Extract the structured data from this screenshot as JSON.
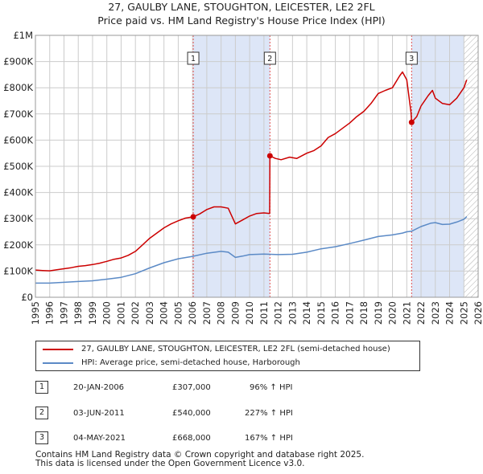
{
  "colors": {
    "price": "#cc0000",
    "hpi": "#5b8ac6",
    "shade": "#dde6f7",
    "grid": "#cccccc",
    "vline": "#e05050"
  },
  "chart_data": {
    "type": "line",
    "title": "27, GAULBY LANE, STOUGHTON, LEICESTER, LE2 2FL",
    "subtitle": "Price paid vs. HM Land Registry's House Price Index (HPI)",
    "xlim": [
      1995,
      2026
    ],
    "ylim": [
      0,
      1000000
    ],
    "y_ticks": [
      {
        "value": 0,
        "label": "£0"
      },
      {
        "value": 100000,
        "label": "£100K"
      },
      {
        "value": 200000,
        "label": "£200K"
      },
      {
        "value": 300000,
        "label": "£300K"
      },
      {
        "value": 400000,
        "label": "£400K"
      },
      {
        "value": 500000,
        "label": "£500K"
      },
      {
        "value": 600000,
        "label": "£600K"
      },
      {
        "value": 700000,
        "label": "£700K"
      },
      {
        "value": 800000,
        "label": "£800K"
      },
      {
        "value": 900000,
        "label": "£900K"
      },
      {
        "value": 1000000,
        "label": "£1M"
      }
    ],
    "x_ticks": [
      "1995",
      "1996",
      "1997",
      "1998",
      "1999",
      "2000",
      "2001",
      "2002",
      "2003",
      "2004",
      "2005",
      "2006",
      "2007",
      "2008",
      "2009",
      "2010",
      "2011",
      "2012",
      "2013",
      "2014",
      "2015",
      "2016",
      "2017",
      "2018",
      "2019",
      "2020",
      "2021",
      "2022",
      "2023",
      "2024",
      "2025",
      "2026"
    ],
    "shaded_periods": [
      [
        2006.05,
        2011.42
      ],
      [
        2021.34,
        2025.0
      ]
    ],
    "hatch_after": 2025.0,
    "series": [
      {
        "name": "27, GAULBY LANE, STOUGHTON, LEICESTER, LE2 2FL (semi-detached house)",
        "key": "price",
        "points": [
          [
            1995.0,
            104000
          ],
          [
            1995.5,
            102000
          ],
          [
            1996.0,
            101000
          ],
          [
            1996.5,
            105000
          ],
          [
            1997.0,
            109000
          ],
          [
            1997.5,
            113000
          ],
          [
            1998.0,
            118000
          ],
          [
            1998.5,
            121000
          ],
          [
            1999.0,
            125000
          ],
          [
            1999.5,
            130000
          ],
          [
            2000.0,
            137000
          ],
          [
            2000.5,
            145000
          ],
          [
            2001.0,
            150000
          ],
          [
            2001.5,
            160000
          ],
          [
            2002.0,
            175000
          ],
          [
            2002.5,
            200000
          ],
          [
            2003.0,
            225000
          ],
          [
            2003.5,
            245000
          ],
          [
            2004.0,
            265000
          ],
          [
            2004.5,
            280000
          ],
          [
            2005.0,
            292000
          ],
          [
            2005.5,
            302000
          ],
          [
            2006.05,
            307000
          ],
          [
            2006.5,
            318000
          ],
          [
            2007.0,
            335000
          ],
          [
            2007.5,
            345000
          ],
          [
            2008.0,
            345000
          ],
          [
            2008.5,
            340000
          ],
          [
            2009.0,
            280000
          ],
          [
            2009.5,
            295000
          ],
          [
            2010.0,
            310000
          ],
          [
            2010.5,
            320000
          ],
          [
            2011.0,
            322000
          ],
          [
            2011.4,
            320000
          ],
          [
            2011.42,
            540000
          ],
          [
            2011.8,
            530000
          ],
          [
            2012.2,
            525000
          ],
          [
            2012.8,
            535000
          ],
          [
            2013.3,
            530000
          ],
          [
            2014.0,
            550000
          ],
          [
            2014.5,
            560000
          ],
          [
            2015.0,
            578000
          ],
          [
            2015.5,
            610000
          ],
          [
            2016.0,
            625000
          ],
          [
            2016.5,
            645000
          ],
          [
            2017.0,
            665000
          ],
          [
            2017.5,
            690000
          ],
          [
            2018.0,
            710000
          ],
          [
            2018.5,
            740000
          ],
          [
            2019.0,
            778000
          ],
          [
            2019.5,
            790000
          ],
          [
            2020.0,
            800000
          ],
          [
            2020.5,
            845000
          ],
          [
            2020.7,
            860000
          ],
          [
            2021.0,
            830000
          ],
          [
            2021.3,
            705000
          ],
          [
            2021.34,
            668000
          ],
          [
            2021.7,
            690000
          ],
          [
            2022.0,
            730000
          ],
          [
            2022.5,
            770000
          ],
          [
            2022.8,
            790000
          ],
          [
            2023.0,
            760000
          ],
          [
            2023.5,
            740000
          ],
          [
            2024.0,
            735000
          ],
          [
            2024.5,
            760000
          ],
          [
            2025.0,
            800000
          ],
          [
            2025.2,
            830000
          ]
        ]
      },
      {
        "name": "HPI: Average price, semi-detached house, Harborough",
        "key": "hpi",
        "points": [
          [
            1995.0,
            54000
          ],
          [
            1996.0,
            54000
          ],
          [
            1997.0,
            57000
          ],
          [
            1998.0,
            60000
          ],
          [
            1999.0,
            63000
          ],
          [
            2000.0,
            69000
          ],
          [
            2001.0,
            76000
          ],
          [
            2002.0,
            90000
          ],
          [
            2003.0,
            112000
          ],
          [
            2004.0,
            132000
          ],
          [
            2005.0,
            147000
          ],
          [
            2006.0,
            156000
          ],
          [
            2007.0,
            168000
          ],
          [
            2008.0,
            175000
          ],
          [
            2008.5,
            172000
          ],
          [
            2009.0,
            152000
          ],
          [
            2009.5,
            157000
          ],
          [
            2010.0,
            163000
          ],
          [
            2011.0,
            165000
          ],
          [
            2012.0,
            163000
          ],
          [
            2013.0,
            164000
          ],
          [
            2014.0,
            172000
          ],
          [
            2015.0,
            185000
          ],
          [
            2016.0,
            193000
          ],
          [
            2017.0,
            205000
          ],
          [
            2018.0,
            218000
          ],
          [
            2019.0,
            232000
          ],
          [
            2020.0,
            238000
          ],
          [
            2020.7,
            245000
          ],
          [
            2021.0,
            250000
          ],
          [
            2021.34,
            252000
          ],
          [
            2022.0,
            270000
          ],
          [
            2022.7,
            283000
          ],
          [
            2023.0,
            285000
          ],
          [
            2023.5,
            278000
          ],
          [
            2024.0,
            279000
          ],
          [
            2024.5,
            287000
          ],
          [
            2025.0,
            298000
          ],
          [
            2025.2,
            308000
          ]
        ]
      }
    ],
    "sale_markers": [
      {
        "label": "1",
        "x": 2006.05,
        "y": 307000
      },
      {
        "label": "2",
        "x": 2011.42,
        "y": 540000
      },
      {
        "label": "3",
        "x": 2021.34,
        "y": 668000
      }
    ]
  },
  "legend": {
    "price_label": "27, GAULBY LANE, STOUGHTON, LEICESTER, LE2 2FL (semi-detached house)",
    "hpi_label": "HPI: Average price, semi-detached house, Harborough"
  },
  "sales": [
    {
      "num": "1",
      "date": "20-JAN-2006",
      "price": "£307,000",
      "hpi": "96% ↑ HPI"
    },
    {
      "num": "2",
      "date": "03-JUN-2011",
      "price": "£540,000",
      "hpi": "227% ↑ HPI"
    },
    {
      "num": "3",
      "date": "04-MAY-2021",
      "price": "£668,000",
      "hpi": "167% ↑ HPI"
    }
  ],
  "footer": {
    "line1": "Contains HM Land Registry data © Crown copyright and database right 2025.",
    "line2": "This data is licensed under the Open Government Licence v3.0."
  }
}
